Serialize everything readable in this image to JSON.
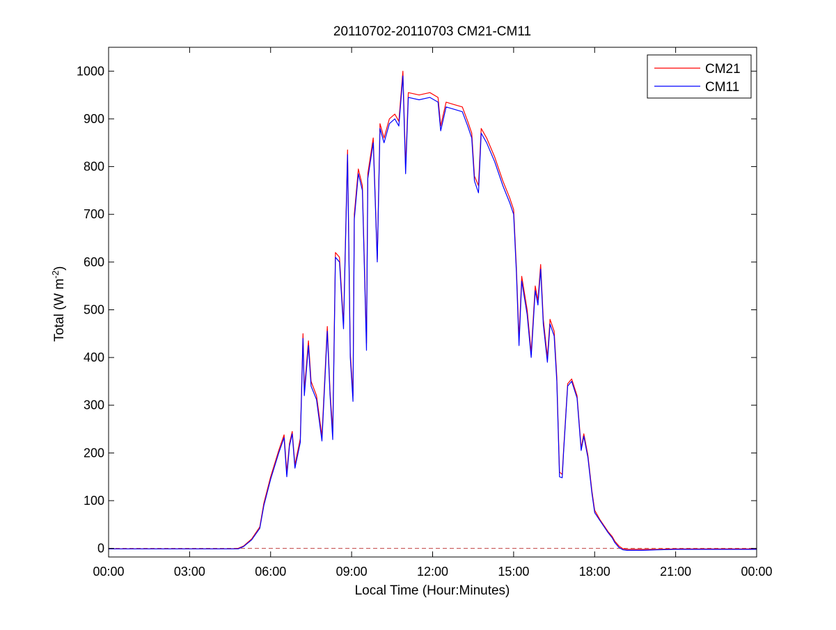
{
  "chart_data": {
    "type": "line",
    "title": "20110702-20110703 CM21-CM11",
    "xlabel": "Local Time (Hour:Minutes)",
    "ylabel_main": "Total (W m",
    "ylabel_sup": "-2",
    "ylabel_close": ")",
    "x_unit": "hours",
    "xlim": [
      0,
      24
    ],
    "ylim": [
      -18,
      1050
    ],
    "x_ticks": [
      0,
      3,
      6,
      9,
      12,
      15,
      18,
      21,
      24
    ],
    "x_tick_labels": [
      "00:00",
      "03:00",
      "06:00",
      "09:00",
      "12:00",
      "15:00",
      "18:00",
      "21:00",
      "00:00"
    ],
    "y_ticks": [
      0,
      100,
      200,
      300,
      400,
      500,
      600,
      700,
      800,
      900,
      1000
    ],
    "y_tick_labels": [
      "0",
      "100",
      "200",
      "300",
      "400",
      "500",
      "600",
      "700",
      "800",
      "900",
      "1000"
    ],
    "grid": false,
    "legend_position": "top-right",
    "reference_line": {
      "y": 0,
      "color": "#c04040",
      "style": "dashed"
    },
    "series": [
      {
        "name": "CM21",
        "color": "#ff0000",
        "points": [
          [
            0.0,
            -1
          ],
          [
            4.5,
            -1
          ],
          [
            4.8,
            0
          ],
          [
            5.0,
            5
          ],
          [
            5.3,
            20
          ],
          [
            5.6,
            45
          ],
          [
            5.75,
            95
          ],
          [
            6.0,
            150
          ],
          [
            6.3,
            205
          ],
          [
            6.5,
            238
          ],
          [
            6.6,
            160
          ],
          [
            6.7,
            220
          ],
          [
            6.8,
            245
          ],
          [
            6.9,
            175
          ],
          [
            7.1,
            230
          ],
          [
            7.2,
            450
          ],
          [
            7.25,
            330
          ],
          [
            7.4,
            435
          ],
          [
            7.5,
            350
          ],
          [
            7.7,
            320
          ],
          [
            7.9,
            235
          ],
          [
            8.1,
            465
          ],
          [
            8.2,
            330
          ],
          [
            8.3,
            245
          ],
          [
            8.4,
            620
          ],
          [
            8.55,
            610
          ],
          [
            8.7,
            470
          ],
          [
            8.85,
            835
          ],
          [
            8.95,
            410
          ],
          [
            9.05,
            320
          ],
          [
            9.1,
            700
          ],
          [
            9.25,
            795
          ],
          [
            9.4,
            760
          ],
          [
            9.55,
            430
          ],
          [
            9.6,
            785
          ],
          [
            9.8,
            860
          ],
          [
            9.95,
            605
          ],
          [
            10.05,
            890
          ],
          [
            10.2,
            860
          ],
          [
            10.4,
            900
          ],
          [
            10.6,
            910
          ],
          [
            10.75,
            895
          ],
          [
            10.9,
            1000
          ],
          [
            11.0,
            800
          ],
          [
            11.1,
            955
          ],
          [
            11.5,
            950
          ],
          [
            11.9,
            955
          ],
          [
            12.2,
            945
          ],
          [
            12.3,
            885
          ],
          [
            12.5,
            935
          ],
          [
            12.8,
            930
          ],
          [
            13.1,
            925
          ],
          [
            13.3,
            895
          ],
          [
            13.45,
            870
          ],
          [
            13.55,
            780
          ],
          [
            13.7,
            760
          ],
          [
            13.8,
            880
          ],
          [
            14.0,
            860
          ],
          [
            14.3,
            820
          ],
          [
            14.6,
            770
          ],
          [
            14.85,
            735
          ],
          [
            15.0,
            710
          ],
          [
            15.1,
            590
          ],
          [
            15.2,
            440
          ],
          [
            15.3,
            570
          ],
          [
            15.5,
            500
          ],
          [
            15.65,
            410
          ],
          [
            15.8,
            550
          ],
          [
            15.9,
            520
          ],
          [
            16.0,
            595
          ],
          [
            16.1,
            480
          ],
          [
            16.25,
            400
          ],
          [
            16.35,
            480
          ],
          [
            16.5,
            455
          ],
          [
            16.6,
            360
          ],
          [
            16.7,
            160
          ],
          [
            16.8,
            155
          ],
          [
            16.85,
            205
          ],
          [
            17.0,
            345
          ],
          [
            17.15,
            355
          ],
          [
            17.35,
            320
          ],
          [
            17.5,
            210
          ],
          [
            17.6,
            240
          ],
          [
            17.75,
            195
          ],
          [
            17.9,
            120
          ],
          [
            18.0,
            80
          ],
          [
            18.2,
            60
          ],
          [
            18.5,
            35
          ],
          [
            18.65,
            25
          ],
          [
            18.75,
            15
          ],
          [
            18.9,
            5
          ],
          [
            19.05,
            -1
          ],
          [
            19.2,
            -2
          ],
          [
            19.8,
            -2
          ],
          [
            20.3,
            -2
          ],
          [
            21.0,
            -1
          ],
          [
            24.0,
            -1
          ]
        ]
      },
      {
        "name": "CM11",
        "color": "#0000ff",
        "points": [
          [
            0.0,
            -1
          ],
          [
            4.5,
            -1
          ],
          [
            4.8,
            -1
          ],
          [
            5.0,
            4
          ],
          [
            5.3,
            18
          ],
          [
            5.6,
            42
          ],
          [
            5.75,
            90
          ],
          [
            6.0,
            145
          ],
          [
            6.3,
            200
          ],
          [
            6.5,
            232
          ],
          [
            6.6,
            150
          ],
          [
            6.7,
            215
          ],
          [
            6.8,
            240
          ],
          [
            6.9,
            168
          ],
          [
            7.1,
            222
          ],
          [
            7.2,
            440
          ],
          [
            7.25,
            320
          ],
          [
            7.4,
            425
          ],
          [
            7.5,
            340
          ],
          [
            7.7,
            312
          ],
          [
            7.9,
            225
          ],
          [
            8.1,
            455
          ],
          [
            8.2,
            322
          ],
          [
            8.3,
            228
          ],
          [
            8.4,
            610
          ],
          [
            8.55,
            600
          ],
          [
            8.7,
            460
          ],
          [
            8.85,
            825
          ],
          [
            8.95,
            400
          ],
          [
            9.05,
            308
          ],
          [
            9.1,
            690
          ],
          [
            9.25,
            785
          ],
          [
            9.4,
            750
          ],
          [
            9.55,
            415
          ],
          [
            9.6,
            775
          ],
          [
            9.8,
            850
          ],
          [
            9.95,
            600
          ],
          [
            10.05,
            880
          ],
          [
            10.2,
            850
          ],
          [
            10.4,
            890
          ],
          [
            10.6,
            900
          ],
          [
            10.75,
            885
          ],
          [
            10.9,
            990
          ],
          [
            11.0,
            785
          ],
          [
            11.1,
            945
          ],
          [
            11.5,
            940
          ],
          [
            11.9,
            945
          ],
          [
            12.2,
            935
          ],
          [
            12.3,
            875
          ],
          [
            12.5,
            925
          ],
          [
            12.8,
            920
          ],
          [
            13.1,
            915
          ],
          [
            13.3,
            885
          ],
          [
            13.45,
            860
          ],
          [
            13.55,
            770
          ],
          [
            13.7,
            745
          ],
          [
            13.8,
            870
          ],
          [
            14.0,
            850
          ],
          [
            14.3,
            810
          ],
          [
            14.6,
            760
          ],
          [
            14.85,
            725
          ],
          [
            15.0,
            700
          ],
          [
            15.1,
            580
          ],
          [
            15.2,
            425
          ],
          [
            15.3,
            560
          ],
          [
            15.5,
            490
          ],
          [
            15.65,
            400
          ],
          [
            15.8,
            540
          ],
          [
            15.9,
            510
          ],
          [
            16.0,
            585
          ],
          [
            16.1,
            470
          ],
          [
            16.25,
            390
          ],
          [
            16.35,
            470
          ],
          [
            16.5,
            445
          ],
          [
            16.6,
            350
          ],
          [
            16.7,
            150
          ],
          [
            16.8,
            148
          ],
          [
            16.85,
            200
          ],
          [
            17.0,
            340
          ],
          [
            17.15,
            350
          ],
          [
            17.35,
            315
          ],
          [
            17.5,
            205
          ],
          [
            17.6,
            235
          ],
          [
            17.75,
            190
          ],
          [
            17.9,
            115
          ],
          [
            18.0,
            75
          ],
          [
            18.2,
            58
          ],
          [
            18.5,
            33
          ],
          [
            18.65,
            22
          ],
          [
            18.75,
            12
          ],
          [
            18.9,
            2
          ],
          [
            19.05,
            -3
          ],
          [
            19.2,
            -4
          ],
          [
            19.8,
            -4
          ],
          [
            20.3,
            -3
          ],
          [
            21.0,
            -2
          ],
          [
            24.0,
            -2
          ]
        ]
      }
    ]
  }
}
